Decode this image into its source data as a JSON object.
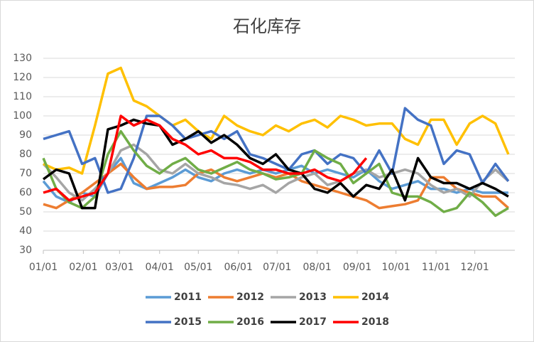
{
  "chart_data": {
    "type": "line",
    "title": "石化库存",
    "x": [
      0,
      10,
      20,
      30,
      40,
      50,
      60,
      70,
      80,
      90,
      100,
      110,
      120,
      130,
      140,
      150,
      160,
      170,
      180,
      190,
      200,
      210,
      220,
      230,
      240,
      250,
      260,
      270,
      280,
      290,
      300,
      310,
      320,
      330,
      340,
      350,
      360
    ],
    "xlim": [
      0,
      365
    ],
    "xticks": [
      {
        "value": 0,
        "label": "01/01"
      },
      {
        "value": 31,
        "label": "02/01"
      },
      {
        "value": 59,
        "label": "03/01"
      },
      {
        "value": 90,
        "label": "04/01"
      },
      {
        "value": 120,
        "label": "05/01"
      },
      {
        "value": 151,
        "label": "06/01"
      },
      {
        "value": 181,
        "label": "07/01"
      },
      {
        "value": 212,
        "label": "08/01"
      },
      {
        "value": 243,
        "label": "09/01"
      },
      {
        "value": 273,
        "label": "10/01"
      },
      {
        "value": 304,
        "label": "11/01"
      },
      {
        "value": 334,
        "label": "12/01"
      }
    ],
    "ylim": [
      30,
      130
    ],
    "yticks": [
      30,
      40,
      50,
      60,
      70,
      80,
      90,
      100,
      110,
      120,
      130
    ],
    "grid": true,
    "series": [
      {
        "name": "2011",
        "color": "#5b9bd5",
        "values": [
          66,
          58,
          55,
          60,
          58,
          70,
          78,
          65,
          62,
          65,
          68,
          72,
          68,
          66,
          70,
          72,
          70,
          72,
          70,
          72,
          74,
          70,
          72,
          70,
          68,
          72,
          66,
          62,
          64,
          66,
          62,
          62,
          60,
          62,
          60,
          60,
          60
        ]
      },
      {
        "name": "2012",
        "color": "#ed7d31",
        "values": [
          54,
          52,
          56,
          60,
          65,
          70,
          75,
          68,
          62,
          63,
          63,
          64,
          70,
          72,
          68,
          66,
          68,
          70,
          68,
          70,
          66,
          64,
          62,
          60,
          58,
          56,
          52,
          53,
          54,
          56,
          68,
          68,
          62,
          60,
          58,
          58,
          52
        ]
      },
      {
        "name": "2013",
        "color": "#a5a5a5",
        "values": [
          75,
          68,
          60,
          56,
          62,
          70,
          82,
          85,
          80,
          72,
          70,
          75,
          70,
          68,
          65,
          64,
          62,
          64,
          60,
          65,
          68,
          70,
          64,
          66,
          70,
          72,
          68,
          70,
          72,
          70,
          64,
          60,
          62,
          58,
          66,
          72,
          66
        ]
      },
      {
        "name": "2014",
        "color": "#ffc000",
        "values": [
          75,
          72,
          73,
          70,
          95,
          122,
          125,
          108,
          105,
          100,
          95,
          98,
          92,
          88,
          100,
          95,
          92,
          90,
          95,
          92,
          96,
          98,
          94,
          100,
          98,
          95,
          96,
          96,
          88,
          85,
          98,
          98,
          85,
          96,
          100,
          96,
          80
        ]
      },
      {
        "name": "2015",
        "color": "#4472c4",
        "values": [
          88,
          90,
          92,
          75,
          78,
          60,
          62,
          78,
          100,
          100,
          95,
          88,
          90,
          92,
          88,
          92,
          80,
          78,
          75,
          72,
          80,
          82,
          75,
          80,
          78,
          70,
          82,
          70,
          104,
          98,
          95,
          75,
          82,
          80,
          65,
          75,
          66
        ]
      },
      {
        "name": "2016",
        "color": "#70ad47",
        "values": [
          78,
          62,
          55,
          52,
          58,
          80,
          92,
          82,
          74,
          70,
          75,
          78,
          72,
          70,
          73,
          76,
          72,
          70,
          67,
          68,
          70,
          82,
          78,
          75,
          65,
          70,
          75,
          60,
          58,
          58,
          55,
          50,
          52,
          60,
          55,
          48,
          52
        ]
      },
      {
        "name": "2017",
        "color": "#000000",
        "values": [
          67,
          72,
          70,
          52,
          52,
          93,
          95,
          98,
          96,
          95,
          85,
          88,
          92,
          86,
          90,
          85,
          78,
          75,
          80,
          72,
          70,
          62,
          60,
          65,
          58,
          64,
          62,
          72,
          56,
          78,
          68,
          65,
          65,
          62,
          65,
          62,
          58
        ]
      },
      {
        "name": "2018",
        "color": "#ff0000",
        "values": [
          60,
          62,
          56,
          58,
          60,
          70,
          100,
          95,
          98,
          95,
          88,
          85,
          80,
          82,
          78,
          78,
          76,
          72,
          72,
          70,
          70,
          72,
          68,
          66,
          70,
          78,
          null,
          null,
          null,
          null,
          null,
          null,
          null,
          null,
          null,
          null,
          null
        ]
      }
    ]
  }
}
